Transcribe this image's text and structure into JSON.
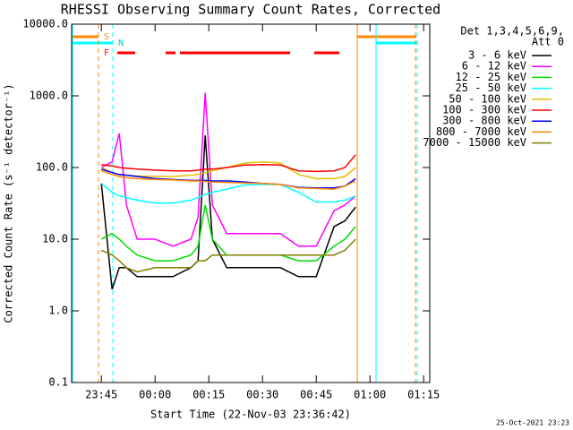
{
  "chart_data": {
    "type": "line",
    "title": "RHESSI Observing Summary Count Rates, Corrected",
    "x_label": "Start Time (22-Nov-03 23:36:42)",
    "y_label": "Corrected Count Rate (s⁻¹ detector⁻¹)",
    "legend_header": [
      "Det 1,3,4,5,6,9,",
      "Att 0"
    ],
    "footer": "25-Oct-2021 23:23",
    "flags": [
      "S",
      "N",
      "F"
    ],
    "ylog": true,
    "xlim": [
      -23.3,
      76.7
    ],
    "xticks": [
      {
        "value": -15,
        "label": "23:45"
      },
      {
        "value": 0,
        "label": "00:00"
      },
      {
        "value": 15,
        "label": "00:15"
      },
      {
        "value": 30,
        "label": "00:30"
      },
      {
        "value": 45,
        "label": "00:45"
      },
      {
        "value": 60,
        "label": "01:00"
      },
      {
        "value": 75,
        "label": "01:15"
      }
    ],
    "ylim": [
      0.1,
      10000
    ],
    "yticks": [
      {
        "value": 10000,
        "label": "10000.0"
      },
      {
        "value": 1000,
        "label": "1000.0"
      },
      {
        "value": 100,
        "label": "100.0"
      },
      {
        "value": 10,
        "label": "10.0"
      },
      {
        "value": 1,
        "label": "1.0"
      },
      0.1
    ],
    "x": [
      -15,
      -12,
      -10,
      -8,
      -5,
      0,
      5,
      10,
      12,
      14,
      16,
      20,
      25,
      30,
      35,
      40,
      45,
      50,
      53,
      56
    ],
    "series": [
      {
        "name": "3 - 6 keV",
        "color": "#000000",
        "values": [
          60,
          2,
          4,
          4,
          3,
          3,
          3,
          4,
          5,
          280,
          10,
          4,
          4,
          4,
          4,
          3,
          3,
          15,
          18,
          28
        ]
      },
      {
        "name": "6 - 12 keV",
        "color": "#ff00ff",
        "values": [
          100,
          120,
          300,
          30,
          10,
          10,
          8,
          10,
          20,
          1100,
          30,
          12,
          12,
          12,
          12,
          8,
          8,
          25,
          30,
          40
        ]
      },
      {
        "name": "12 - 25 keV",
        "color": "#00dd00",
        "values": [
          10,
          12,
          10,
          8,
          6,
          5,
          5,
          6,
          8,
          30,
          10,
          6,
          6,
          6,
          6,
          5,
          5,
          8,
          10,
          15
        ]
      },
      {
        "name": "25 - 50 keV",
        "color": "#00ffff",
        "values": [
          60,
          45,
          40,
          38,
          35,
          32,
          32,
          35,
          38,
          42,
          45,
          50,
          57,
          58,
          58,
          45,
          33,
          33,
          35,
          40
        ]
      },
      {
        "name": "50 - 100 keV",
        "color": "#e0c000",
        "values": [
          100,
          85,
          80,
          78,
          76,
          75,
          75,
          78,
          80,
          85,
          90,
          100,
          115,
          120,
          115,
          80,
          70,
          70,
          75,
          100
        ]
      },
      {
        "name": "100 - 300 keV",
        "color": "#ff0000",
        "values": [
          110,
          105,
          100,
          98,
          95,
          92,
          90,
          90,
          92,
          95,
          95,
          100,
          108,
          110,
          108,
          90,
          88,
          90,
          100,
          150
        ]
      },
      {
        "name": "300 - 800 keV",
        "color": "#0000ff",
        "values": [
          95,
          85,
          80,
          78,
          75,
          70,
          68,
          66,
          66,
          66,
          65,
          65,
          63,
          60,
          58,
          53,
          52,
          52,
          55,
          70
        ]
      },
      {
        "name": "800 - 7000 keV",
        "color": "#ff8800",
        "values": [
          90,
          80,
          75,
          72,
          70,
          68,
          67,
          65,
          65,
          64,
          63,
          62,
          61,
          60,
          58,
          52,
          51,
          50,
          55,
          65
        ]
      },
      {
        "name": "7000 - 15000 keV",
        "color": "#808000",
        "values": [
          7,
          6,
          5,
          4,
          3.5,
          4,
          4,
          4,
          5,
          5,
          6,
          6,
          6,
          6,
          6,
          6,
          6,
          6,
          7,
          10
        ]
      }
    ]
  }
}
